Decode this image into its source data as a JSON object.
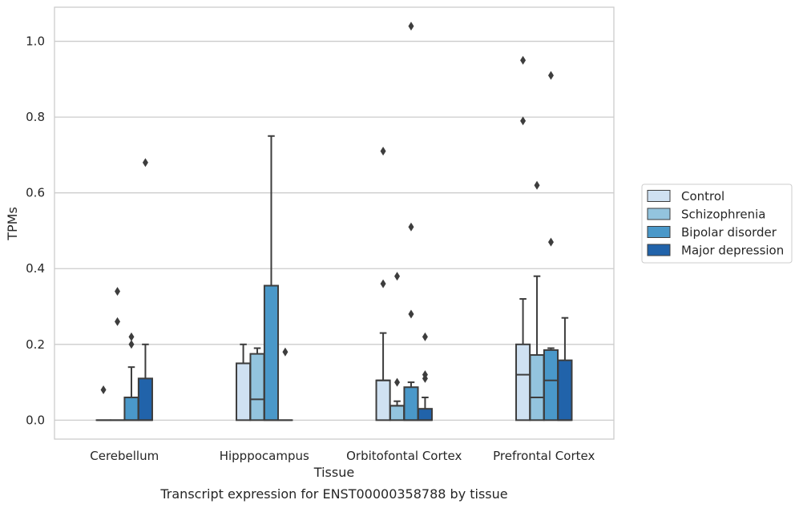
{
  "chart_data": {
    "type": "box",
    "title": "",
    "caption": "Transcript expression for ENST00000358788 by tissue",
    "xlabel": "Tissue",
    "ylabel": "TPMs",
    "ylim": [
      -0.05,
      1.09
    ],
    "yticks": [
      "0.0",
      "0.2",
      "0.4",
      "0.6",
      "0.8",
      "1.0"
    ],
    "categories": [
      "Cerebellum",
      "Hipppocampus",
      "Orbitofontal Cortex",
      "Prefrontal Cortex"
    ],
    "grid": true,
    "legend_position": "right",
    "series": [
      {
        "name": "Control",
        "color": "#cfe1f2",
        "boxes": [
          {
            "q1": 0,
            "median": 0,
            "q3": 0,
            "whislo": 0,
            "whishi": 0,
            "fliers": [
              0.08
            ]
          },
          {
            "q1": 0,
            "median": 0.15,
            "q3": 0.15,
            "whislo": 0,
            "whishi": 0.2,
            "fliers": []
          },
          {
            "q1": 0,
            "median": 0.105,
            "q3": 0.105,
            "whislo": 0,
            "whishi": 0.23,
            "fliers": [
              0.36,
              0.71
            ]
          },
          {
            "q1": 0,
            "median": 0.12,
            "q3": 0.2,
            "whislo": 0,
            "whishi": 0.32,
            "fliers": [
              0.79,
              0.95
            ]
          }
        ]
      },
      {
        "name": "Schizophrenia",
        "color": "#93c4de",
        "boxes": [
          {
            "q1": 0,
            "median": 0,
            "q3": 0,
            "whislo": 0,
            "whishi": 0,
            "fliers": [
              0.26,
              0.34
            ]
          },
          {
            "q1": 0,
            "median": 0.055,
            "q3": 0.175,
            "whislo": 0,
            "whishi": 0.19,
            "fliers": []
          },
          {
            "q1": 0,
            "median": 0.038,
            "q3": 0.038,
            "whislo": 0,
            "whishi": 0.05,
            "fliers": [
              0.1,
              0.38
            ]
          },
          {
            "q1": 0,
            "median": 0.06,
            "q3": 0.172,
            "whislo": 0,
            "whishi": 0.38,
            "fliers": [
              0.62
            ]
          }
        ]
      },
      {
        "name": "Bipolar disorder",
        "color": "#4a98c9",
        "boxes": [
          {
            "q1": 0,
            "median": 0,
            "q3": 0.06,
            "whislo": 0,
            "whishi": 0.14,
            "fliers": [
              0.2,
              0.22
            ]
          },
          {
            "q1": 0,
            "median": 0,
            "q3": 0.355,
            "whislo": 0,
            "whishi": 0.75,
            "fliers": []
          },
          {
            "q1": 0,
            "median": 0,
            "q3": 0.087,
            "whislo": 0,
            "whishi": 0.1,
            "fliers": [
              0.28,
              0.51,
              1.04
            ]
          },
          {
            "q1": 0,
            "median": 0.105,
            "q3": 0.185,
            "whislo": 0,
            "whishi": 0.19,
            "fliers": [
              0.47,
              0.91
            ]
          }
        ]
      },
      {
        "name": "Major depression",
        "color": "#2163aa",
        "boxes": [
          {
            "q1": 0,
            "median": 0,
            "q3": 0.11,
            "whislo": 0,
            "whishi": 0.2,
            "fliers": [
              0.68
            ]
          },
          {
            "q1": 0,
            "median": 0,
            "q3": 0,
            "whislo": 0,
            "whishi": 0,
            "fliers": [
              0.18
            ]
          },
          {
            "q1": 0,
            "median": 0,
            "q3": 0.03,
            "whislo": 0,
            "whishi": 0.06,
            "fliers": [
              0.11,
              0.12,
              0.22
            ]
          },
          {
            "q1": 0,
            "median": 0,
            "q3": 0.158,
            "whislo": 0,
            "whishi": 0.27,
            "fliers": []
          }
        ]
      }
    ]
  }
}
